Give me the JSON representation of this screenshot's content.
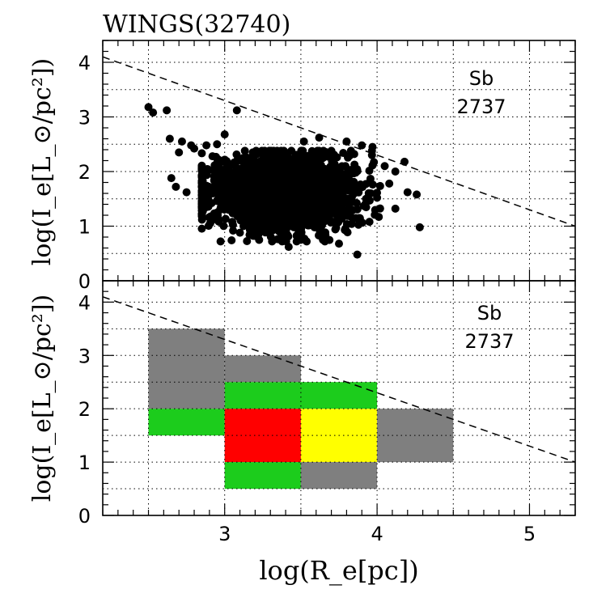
{
  "chart_data": [
    {
      "type": "scatter",
      "panel": "top",
      "title": "WINGS(32740)",
      "xlabel": "log(R_e[pc])",
      "ylabel": "log(I_e[L_⊙/pc²])",
      "xlim": [
        2.2,
        5.3
      ],
      "ylim": [
        0,
        4.4
      ],
      "xticks": [
        3,
        4,
        5
      ],
      "yticks": [
        0,
        1,
        2,
        3,
        4
      ],
      "xtick_labels": [
        "3",
        "4",
        "5"
      ],
      "ytick_labels": [
        "0",
        "1",
        "2",
        "3",
        "4"
      ],
      "grid": true,
      "annotation": {
        "type_label": "Sb",
        "count_label": "2737"
      },
      "reference_line": {
        "style": "dashed",
        "x": [
          2.2,
          5.3
        ],
        "y": [
          4.1,
          1.0
        ]
      },
      "n_points": 2737,
      "center": [
        3.38,
        1.62
      ],
      "spread": [
        0.22,
        0.32
      ],
      "highlight_points": [
        [
          2.5,
          3.18
        ],
        [
          2.53,
          3.08
        ],
        [
          2.62,
          3.12
        ],
        [
          3.08,
          3.12
        ],
        [
          2.64,
          2.6
        ],
        [
          2.72,
          2.55
        ],
        [
          2.7,
          2.35
        ],
        [
          2.78,
          2.48
        ],
        [
          2.8,
          2.42
        ],
        [
          2.65,
          1.88
        ],
        [
          2.68,
          1.72
        ],
        [
          2.75,
          1.62
        ],
        [
          2.88,
          2.48
        ],
        [
          2.95,
          2.5
        ],
        [
          3.0,
          2.68
        ],
        [
          3.52,
          2.55
        ],
        [
          3.62,
          2.62
        ],
        [
          3.8,
          2.55
        ],
        [
          3.9,
          2.48
        ],
        [
          3.97,
          2.45
        ],
        [
          4.05,
          2.1
        ],
        [
          4.12,
          2.0
        ],
        [
          4.08,
          1.78
        ],
        [
          4.2,
          1.62
        ],
        [
          4.26,
          1.58
        ],
        [
          4.28,
          0.98
        ],
        [
          4.12,
          1.32
        ],
        [
          3.95,
          1.08
        ],
        [
          3.87,
          0.48
        ],
        [
          3.75,
          0.68
        ],
        [
          3.42,
          0.62
        ],
        [
          3.5,
          0.75
        ],
        [
          3.2,
          0.82
        ],
        [
          3.1,
          0.88
        ],
        [
          4.0,
          1.52
        ],
        [
          3.7,
          2.38
        ],
        [
          3.85,
          2.32
        ],
        [
          2.85,
          2.05
        ],
        [
          2.92,
          2.28
        ],
        [
          4.18,
          2.18
        ]
      ]
    },
    {
      "type": "heatmap",
      "panel": "bottom",
      "xlabel": "log(R_e[pc])",
      "ylabel": "log(I_e[L_⊙/pc²])",
      "xlim": [
        2.2,
        5.3
      ],
      "ylim": [
        0,
        4.4
      ],
      "xticks": [
        3,
        4,
        5
      ],
      "yticks": [
        0,
        1,
        2,
        3,
        4
      ],
      "xtick_labels": [
        "3",
        "4",
        "5"
      ],
      "ytick_labels": [
        "0",
        "1",
        "2",
        "3",
        "4"
      ],
      "grid": true,
      "annotation": {
        "type_label": "Sb",
        "count_label": "2737"
      },
      "reference_line": {
        "style": "dashed",
        "x": [
          2.2,
          5.3
        ],
        "y": [
          4.1,
          1.0
        ]
      },
      "cells": [
        {
          "x0": 2.5,
          "x1": 3.0,
          "y0": 2.0,
          "y1": 3.5,
          "color": "#7f7f7f"
        },
        {
          "x0": 3.0,
          "x1": 3.5,
          "y0": 2.5,
          "y1": 3.0,
          "color": "#7f7f7f"
        },
        {
          "x0": 3.0,
          "x1": 4.0,
          "y0": 2.0,
          "y1": 2.5,
          "color": "#1ccc1c"
        },
        {
          "x0": 2.5,
          "x1": 3.0,
          "y0": 1.5,
          "y1": 2.0,
          "color": "#1ccc1c"
        },
        {
          "x0": 3.0,
          "x1": 3.5,
          "y0": 1.0,
          "y1": 2.0,
          "color": "#ff0000"
        },
        {
          "x0": 3.5,
          "x1": 4.0,
          "y0": 1.0,
          "y1": 2.0,
          "color": "#ffff00"
        },
        {
          "x0": 4.0,
          "x1": 4.5,
          "y0": 1.0,
          "y1": 2.0,
          "color": "#7f7f7f"
        },
        {
          "x0": 3.0,
          "x1": 3.5,
          "y0": 0.5,
          "y1": 1.0,
          "color": "#1ccc1c"
        },
        {
          "x0": 3.5,
          "x1": 4.0,
          "y0": 0.5,
          "y1": 1.0,
          "color": "#7f7f7f"
        }
      ]
    }
  ]
}
